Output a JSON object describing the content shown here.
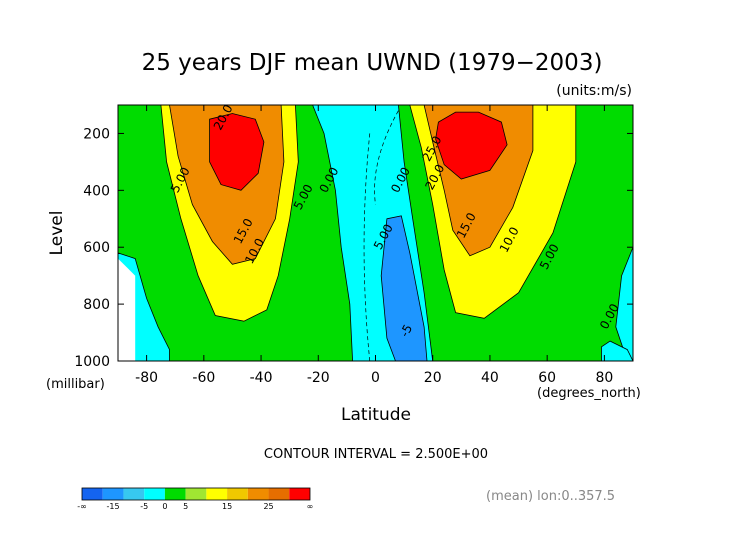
{
  "chart_data": {
    "type": "contour",
    "title": "25 years DJF mean UWND (1979−2003)",
    "units_label": "(units:m/s)",
    "xlabel": "Latitude",
    "ylabel": "Level",
    "x_unit_label": "(degrees_north)",
    "y_unit_label": "(millibar)",
    "xlim": [
      -90,
      90
    ],
    "ylim": [
      1000,
      100
    ],
    "x_ticks": [
      -80,
      -60,
      -40,
      -20,
      0,
      20,
      40,
      60,
      80
    ],
    "y_ticks": [
      200,
      400,
      600,
      800,
      1000
    ],
    "contour_interval_text": "CONTOUR INTERVAL = 2.500E+00",
    "contour_labels": [
      {
        "text": "20.0",
        "lat": -52,
        "lev": 150
      },
      {
        "text": "5.00",
        "lat": -67,
        "lev": 370
      },
      {
        "text": "15.0",
        "lat": -45,
        "lev": 550
      },
      {
        "text": "10.0",
        "lat": -41,
        "lev": 620
      },
      {
        "text": "5.00",
        "lat": -24,
        "lev": 430
      },
      {
        "text": "0.00",
        "lat": -15,
        "lev": 370
      },
      {
        "text": "0.00",
        "lat": 10,
        "lev": 370
      },
      {
        "text": "5.00",
        "lat": 4,
        "lev": 570
      },
      {
        "text": "-5",
        "lat": 12,
        "lev": 900
      },
      {
        "text": "25.0",
        "lat": 21,
        "lev": 260
      },
      {
        "text": "20.0",
        "lat": 22,
        "lev": 360
      },
      {
        "text": "15.0",
        "lat": 33,
        "lev": 530
      },
      {
        "text": "10.0",
        "lat": 48,
        "lev": 580
      },
      {
        "text": "5.00",
        "lat": 62,
        "lev": 640
      },
      {
        "text": "0.00",
        "lat": 83,
        "lev": 850
      }
    ],
    "colorbar": {
      "levels": [
        "-∞",
        "-15",
        "-5",
        "0",
        "5",
        "15",
        "25",
        "∞"
      ],
      "colors": [
        "#1464f0",
        "#1e96ff",
        "#37c8f0",
        "#00ffff",
        "#00dc00",
        "#a0e632",
        "#ffff00",
        "#f0c800",
        "#f08c00",
        "#e66e00",
        "#ff0000"
      ]
    },
    "footer_note": "(mean) lon:0..357.5",
    "colors": {
      "red": "#ff0000",
      "dark_orange": "#f08c00",
      "orange": "#ffa500",
      "yellow": "#ffff00",
      "green": "#00dc00",
      "cyan": "#00ffff",
      "light_blue": "#1e96ff"
    }
  }
}
